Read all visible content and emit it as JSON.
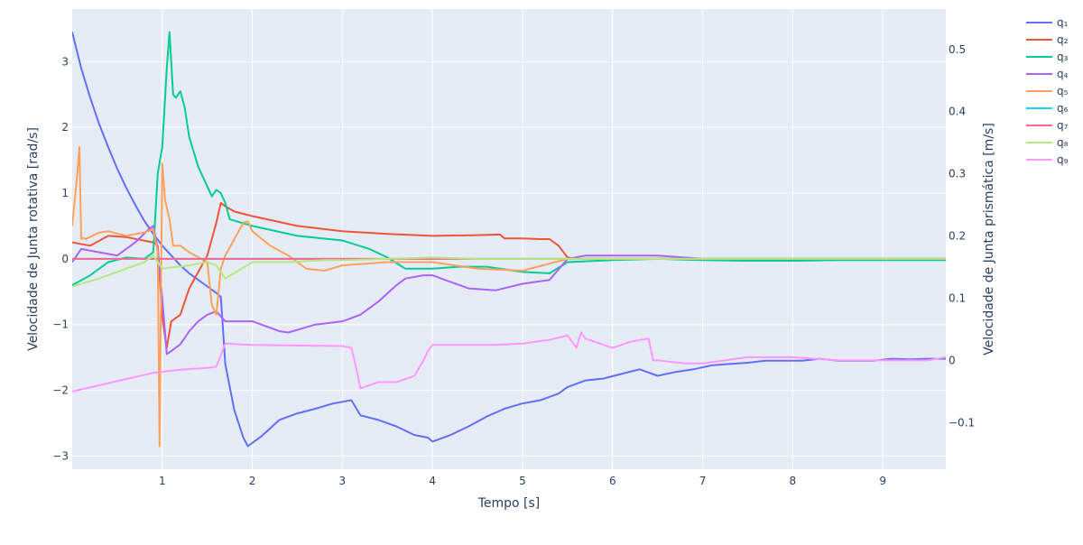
{
  "chart_data": {
    "type": "line",
    "title": "",
    "xlabel": "Tempo [s]",
    "ylabel_left": "Velocidade de Junta rotativa [rad/s]",
    "ylabel_right": "Velocidade de Junta prismática [m/s]",
    "xlim": [
      0,
      9.7
    ],
    "ylim_left": [
      -3.2,
      3.8
    ],
    "ylim_right": [
      -0.175,
      0.565
    ],
    "x_ticks": [
      1,
      2,
      3,
      4,
      5,
      6,
      7,
      8,
      9
    ],
    "y_ticks_left": [
      -3,
      -2,
      -1,
      0,
      1,
      2,
      3
    ],
    "y_ticks_right": [
      -0.1,
      0,
      0.1,
      0.2,
      0.3,
      0.4,
      0.5
    ],
    "y_ticks_left_labels": [
      "−3",
      "−2",
      "−1",
      "0",
      "1",
      "2",
      "3"
    ],
    "y_ticks_right_labels": [
      "−0.1",
      "0",
      "0.1",
      "0.2",
      "0.3",
      "0.4",
      "0.5"
    ],
    "grid": true,
    "legend_position": "right",
    "background": "#E5ECF6",
    "series": [
      {
        "name": "q₁",
        "color": "#636EFA",
        "axis": "left",
        "x": [
          0,
          0.1,
          0.2,
          0.3,
          0.4,
          0.5,
          0.6,
          0.7,
          0.8,
          0.9,
          1.0,
          1.1,
          1.2,
          1.3,
          1.4,
          1.5,
          1.6,
          1.65,
          1.7,
          1.8,
          1.9,
          1.95,
          2.1,
          2.3,
          2.5,
          2.7,
          2.9,
          3.1,
          3.2,
          3.4,
          3.6,
          3.8,
          3.95,
          4.0,
          4.2,
          4.4,
          4.6,
          4.8,
          5.0,
          5.2,
          5.4,
          5.5,
          5.7,
          5.9,
          6.1,
          6.3,
          6.5,
          6.7,
          6.9,
          7.1,
          7.3,
          7.5,
          7.7,
          7.9,
          8.1,
          8.3,
          8.5,
          8.7,
          8.9,
          9.1,
          9.3,
          9.5,
          9.7
        ],
        "y": [
          3.45,
          2.9,
          2.45,
          2.05,
          1.7,
          1.37,
          1.08,
          0.82,
          0.58,
          0.38,
          0.2,
          0.05,
          -0.1,
          -0.22,
          -0.32,
          -0.42,
          -0.52,
          -0.58,
          -1.6,
          -2.3,
          -2.72,
          -2.85,
          -2.7,
          -2.45,
          -2.35,
          -2.28,
          -2.2,
          -2.15,
          -2.38,
          -2.45,
          -2.55,
          -2.68,
          -2.72,
          -2.78,
          -2.68,
          -2.55,
          -2.4,
          -2.28,
          -2.2,
          -2.15,
          -2.05,
          -1.95,
          -1.85,
          -1.82,
          -1.75,
          -1.68,
          -1.78,
          -1.72,
          -1.68,
          -1.62,
          -1.6,
          -1.58,
          -1.55,
          -1.55,
          -1.55,
          -1.52,
          -1.55,
          -1.55,
          -1.55,
          -1.52,
          -1.53,
          -1.52,
          -1.52
        ]
      },
      {
        "name": "q₂",
        "color": "#EF553B",
        "axis": "left",
        "x": [
          0,
          0.2,
          0.4,
          0.6,
          0.9,
          0.95,
          1.0,
          1.05,
          1.1,
          1.2,
          1.3,
          1.4,
          1.5,
          1.55,
          1.6,
          1.65,
          1.7,
          1.8,
          2.0,
          2.5,
          3.0,
          3.5,
          4.0,
          4.5,
          4.75,
          4.8,
          5.0,
          5.2,
          5.3,
          5.4,
          5.5,
          5.6,
          6.0,
          6.5,
          7.0,
          7.5,
          8.0,
          8.5,
          9.0,
          9.5,
          9.7
        ],
        "y": [
          0.25,
          0.2,
          0.35,
          0.33,
          0.25,
          0.2,
          -0.9,
          -1.35,
          -0.95,
          -0.85,
          -0.45,
          -0.2,
          0.05,
          0.3,
          0.55,
          0.85,
          0.8,
          0.72,
          0.65,
          0.5,
          0.42,
          0.38,
          0.35,
          0.36,
          0.37,
          0.31,
          0.31,
          0.3,
          0.3,
          0.2,
          0.02,
          0.0,
          0.0,
          0.0,
          0.0,
          0.0,
          0.0,
          0.0,
          0.0,
          0.0,
          0.0
        ]
      },
      {
        "name": "q₃",
        "color": "#00CC96",
        "axis": "left",
        "x": [
          0,
          0.2,
          0.4,
          0.6,
          0.8,
          0.9,
          0.95,
          1.0,
          1.05,
          1.08,
          1.12,
          1.15,
          1.2,
          1.25,
          1.3,
          1.4,
          1.5,
          1.55,
          1.6,
          1.65,
          1.7,
          1.75,
          2.0,
          2.5,
          3.0,
          3.3,
          3.5,
          3.7,
          4.0,
          4.3,
          4.6,
          5.0,
          5.3,
          5.5,
          6.0,
          6.5,
          7.0,
          7.5,
          8.0,
          8.5,
          9.0,
          9.5,
          9.7
        ],
        "y": [
          -0.4,
          -0.25,
          -0.05,
          0.02,
          0.0,
          0.1,
          1.3,
          1.7,
          2.9,
          3.45,
          2.5,
          2.45,
          2.55,
          2.3,
          1.85,
          1.4,
          1.1,
          0.95,
          1.05,
          1.0,
          0.85,
          0.6,
          0.5,
          0.35,
          0.28,
          0.15,
          0.02,
          -0.15,
          -0.15,
          -0.12,
          -0.12,
          -0.2,
          -0.22,
          -0.05,
          -0.02,
          0.0,
          -0.02,
          -0.03,
          -0.03,
          -0.02,
          -0.02,
          -0.02,
          -0.02
        ]
      },
      {
        "name": "q₄",
        "color": "#AB63FA",
        "axis": "left",
        "x": [
          0,
          0.1,
          0.3,
          0.5,
          0.7,
          0.85,
          0.9,
          0.95,
          1.0,
          1.05,
          1.1,
          1.2,
          1.3,
          1.4,
          1.5,
          1.6,
          1.7,
          1.8,
          2.0,
          2.3,
          2.4,
          2.7,
          3.0,
          3.2,
          3.4,
          3.6,
          3.7,
          3.9,
          4.0,
          4.2,
          4.4,
          4.7,
          5.0,
          5.3,
          5.5,
          5.7,
          6.0,
          6.5,
          7.0,
          7.5,
          8.0,
          8.5,
          9.0,
          9.5,
          9.7
        ],
        "y": [
          -0.05,
          0.15,
          0.1,
          0.05,
          0.25,
          0.45,
          0.5,
          0.15,
          -0.6,
          -1.45,
          -1.4,
          -1.3,
          -1.1,
          -0.95,
          -0.85,
          -0.8,
          -0.95,
          -0.95,
          -0.95,
          -1.1,
          -1.12,
          -1.0,
          -0.95,
          -0.85,
          -0.65,
          -0.4,
          -0.3,
          -0.25,
          -0.25,
          -0.35,
          -0.45,
          -0.48,
          -0.38,
          -0.32,
          0.0,
          0.05,
          0.05,
          0.05,
          0.0,
          0.0,
          0.0,
          0.0,
          0.0,
          0.0,
          0.0
        ]
      },
      {
        "name": "q₅",
        "color": "#FFA15A",
        "axis": "left",
        "x": [
          0,
          0.05,
          0.08,
          0.1,
          0.12,
          0.15,
          0.3,
          0.4,
          0.6,
          0.8,
          0.9,
          0.95,
          0.97,
          1.0,
          1.03,
          1.08,
          1.12,
          1.2,
          1.3,
          1.5,
          1.55,
          1.6,
          1.65,
          1.7,
          1.8,
          1.9,
          1.95,
          2.0,
          2.2,
          2.4,
          2.6,
          2.8,
          3.0,
          3.5,
          4.0,
          4.5,
          5.0,
          5.5,
          6.0,
          7.0,
          8.0,
          9.0,
          9.7
        ],
        "y": [
          0.5,
          1.2,
          1.7,
          0.3,
          0.32,
          0.3,
          0.4,
          0.42,
          0.35,
          0.4,
          0.45,
          0.1,
          -2.85,
          1.45,
          0.9,
          0.6,
          0.2,
          0.2,
          0.1,
          -0.05,
          -0.7,
          -0.85,
          -0.15,
          0.05,
          0.3,
          0.55,
          0.57,
          0.42,
          0.2,
          0.05,
          -0.15,
          -0.18,
          -0.1,
          -0.05,
          -0.05,
          -0.15,
          -0.18,
          0.0,
          0.0,
          0.0,
          0.0,
          0.0,
          0.0
        ]
      },
      {
        "name": "q₆",
        "color": "#19D3F3",
        "axis": "left",
        "x": [
          0,
          1,
          2,
          3,
          4,
          5,
          6,
          7,
          8,
          9,
          9.7
        ],
        "y": [
          0,
          0,
          0,
          0,
          0,
          0,
          0,
          0,
          0,
          0,
          0
        ]
      },
      {
        "name": "q₇",
        "color": "#FF6692",
        "axis": "left",
        "x": [
          0,
          1,
          2,
          3,
          4,
          5,
          6,
          7,
          8,
          9,
          9.7
        ],
        "y": [
          0,
          0,
          0,
          0,
          0,
          0,
          0,
          0,
          0,
          0,
          0
        ]
      },
      {
        "name": "q₈",
        "color": "#B6E880",
        "axis": "left",
        "x": [
          0,
          0.3,
          0.5,
          0.8,
          0.9,
          1.0,
          1.3,
          1.5,
          1.6,
          1.7,
          2.0,
          2.4,
          2.8,
          3.0,
          3.5,
          4.0,
          4.5,
          5.0,
          5.5,
          6.0,
          7.0,
          8.0,
          9.0,
          9.7
        ],
        "y": [
          -0.42,
          -0.3,
          -0.2,
          -0.05,
          0.05,
          -0.15,
          -0.1,
          -0.05,
          -0.1,
          -0.3,
          -0.05,
          -0.05,
          -0.02,
          -0.02,
          0.0,
          0.02,
          0.0,
          0.0,
          0.0,
          0.0,
          0.0,
          0.0,
          0.0,
          0.0
        ]
      },
      {
        "name": "q₉",
        "color": "#FF97FF",
        "axis": "right",
        "x": [
          0,
          0.3,
          0.6,
          0.9,
          1.2,
          1.5,
          1.6,
          1.7,
          2.0,
          2.5,
          3.0,
          3.1,
          3.15,
          3.2,
          3.4,
          3.6,
          3.8,
          3.9,
          3.95,
          4.0,
          4.3,
          4.7,
          5.0,
          5.3,
          5.5,
          5.6,
          5.65,
          5.7,
          6.0,
          6.2,
          6.4,
          6.45,
          6.5,
          6.8,
          7.0,
          7.5,
          8.0,
          8.5,
          9.0,
          9.5,
          9.7
        ],
        "y": [
          -0.05,
          -0.04,
          -0.03,
          -0.02,
          -0.015,
          -0.012,
          -0.01,
          0.027,
          0.025,
          0.024,
          0.023,
          0.02,
          -0.01,
          -0.045,
          -0.035,
          -0.035,
          -0.025,
          0.0,
          0.015,
          0.025,
          0.025,
          0.025,
          0.027,
          0.033,
          0.04,
          0.02,
          0.045,
          0.035,
          0.02,
          0.03,
          0.035,
          0.0,
          0.0,
          -0.005,
          -0.005,
          0.005,
          0.005,
          0.0,
          0.0,
          0.0,
          0.005
        ]
      }
    ]
  }
}
